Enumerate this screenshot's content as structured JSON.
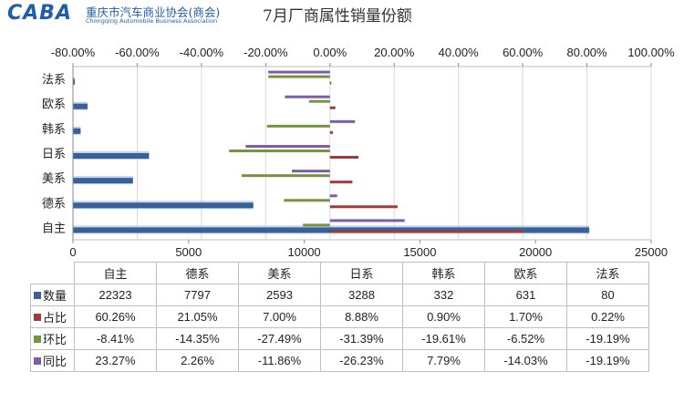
{
  "header": {
    "logo_mark": "CABA",
    "logo_text_cn": "重庆市汽车商业协会(商会)",
    "logo_text_en": "Chongqing Automobile Business Association",
    "title": "7月厂商属性销量份额"
  },
  "chart_data": {
    "type": "bar",
    "title": "7月厂商属性销量份额",
    "categories": [
      "自主",
      "德系",
      "美系",
      "日系",
      "韩系",
      "欧系",
      "法系"
    ],
    "bottom_axis": {
      "range": [
        0,
        25000
      ],
      "ticks": [
        "0",
        "5000",
        "10000",
        "15000",
        "20000",
        "25000"
      ]
    },
    "top_axis": {
      "range": [
        -0.8,
        1.0
      ],
      "ticks": [
        "-80.00%",
        "-60.00%",
        "-40.00%",
        "-20.00%",
        "0.00%",
        "20.00%",
        "40.00%",
        "60.00%",
        "80.00%",
        "100.00%"
      ]
    },
    "grid": true,
    "legend": "table-rows",
    "series": [
      {
        "name": "数量",
        "axis": "bottom",
        "color": "#3a5f99",
        "values": [
          22323,
          7797,
          2593,
          3288,
          332,
          631,
          80
        ],
        "labels": [
          "22323",
          "7797",
          "2593",
          "3288",
          "332",
          "631",
          "80"
        ]
      },
      {
        "name": "占比",
        "axis": "top",
        "color": "#a33a3a",
        "values": [
          0.6026,
          0.2105,
          0.07,
          0.0888,
          0.009,
          0.017,
          0.0022
        ],
        "labels": [
          "60.26%",
          "21.05%",
          "7.00%",
          "8.88%",
          "0.90%",
          "1.70%",
          "0.22%"
        ]
      },
      {
        "name": "环比",
        "axis": "top",
        "color": "#77933c",
        "values": [
          -0.0841,
          -0.1435,
          -0.2749,
          -0.3139,
          -0.1961,
          -0.0652,
          -0.1919
        ],
        "labels": [
          "-8.41%",
          "-14.35%",
          "-27.49%",
          "-31.39%",
          "-19.61%",
          "-6.52%",
          "-19.19%"
        ]
      },
      {
        "name": "同比",
        "axis": "top",
        "color": "#7e5ca8",
        "values": [
          0.2327,
          0.0226,
          -0.1186,
          -0.2623,
          0.0779,
          -0.1403,
          -0.1919
        ],
        "labels": [
          "23.27%",
          "2.26%",
          "-11.86%",
          "-26.23%",
          "7.79%",
          "-14.03%",
          "-19.19%"
        ]
      }
    ]
  }
}
